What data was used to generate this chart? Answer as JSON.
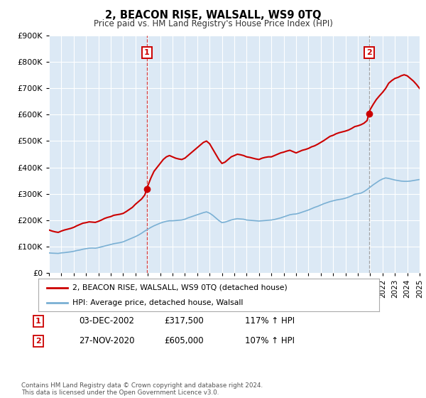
{
  "title": "2, BEACON RISE, WALSALL, WS9 0TQ",
  "subtitle": "Price paid vs. HM Land Registry's House Price Index (HPI)",
  "fig_bg_color": "#ffffff",
  "plot_bg_color": "#dce9f5",
  "red_line_color": "#cc0000",
  "blue_line_color": "#7ab0d4",
  "red_dot_color": "#cc0000",
  "grid_color": "#ffffff",
  "vline1_color": "#cc0000",
  "vline2_color": "#888888",
  "legend_label_red": "2, BEACON RISE, WALSALL, WS9 0TQ (detached house)",
  "legend_label_blue": "HPI: Average price, detached house, Walsall",
  "sale1_date": "03-DEC-2002",
  "sale1_price": 317500,
  "sale1_hpi": "117%",
  "sale1_year": 2002.92,
  "sale2_date": "27-NOV-2020",
  "sale2_price": 605000,
  "sale2_hpi": "107%",
  "sale2_year": 2020.9,
  "xmin": 1995,
  "xmax": 2025,
  "ymin": 0,
  "ymax": 900000,
  "yticks": [
    0,
    100000,
    200000,
    300000,
    400000,
    500000,
    600000,
    700000,
    800000,
    900000
  ],
  "ytick_labels": [
    "£0",
    "£100K",
    "£200K",
    "£300K",
    "£400K",
    "£500K",
    "£600K",
    "£700K",
    "£800K",
    "£900K"
  ],
  "footer": "Contains HM Land Registry data © Crown copyright and database right 2024.\nThis data is licensed under the Open Government Licence v3.0.",
  "red_hpi_data": [
    [
      1995.0,
      162000
    ],
    [
      1995.25,
      158000
    ],
    [
      1995.5,
      155000
    ],
    [
      1995.75,
      153000
    ],
    [
      1996.0,
      158000
    ],
    [
      1996.25,
      162000
    ],
    [
      1996.5,
      165000
    ],
    [
      1996.75,
      168000
    ],
    [
      1997.0,
      172000
    ],
    [
      1997.25,
      178000
    ],
    [
      1997.5,
      183000
    ],
    [
      1997.75,
      188000
    ],
    [
      1998.0,
      190000
    ],
    [
      1998.25,
      193000
    ],
    [
      1998.5,
      192000
    ],
    [
      1998.75,
      191000
    ],
    [
      1999.0,
      195000
    ],
    [
      1999.25,
      200000
    ],
    [
      1999.5,
      206000
    ],
    [
      1999.75,
      210000
    ],
    [
      2000.0,
      213000
    ],
    [
      2000.25,
      218000
    ],
    [
      2000.5,
      220000
    ],
    [
      2000.75,
      222000
    ],
    [
      2001.0,
      225000
    ],
    [
      2001.25,
      232000
    ],
    [
      2001.5,
      240000
    ],
    [
      2001.75,
      248000
    ],
    [
      2002.0,
      260000
    ],
    [
      2002.25,
      270000
    ],
    [
      2002.5,
      280000
    ],
    [
      2002.75,
      295000
    ],
    [
      2002.92,
      317500
    ],
    [
      2003.0,
      330000
    ],
    [
      2003.25,
      360000
    ],
    [
      2003.5,
      385000
    ],
    [
      2003.75,
      400000
    ],
    [
      2004.0,
      415000
    ],
    [
      2004.25,
      430000
    ],
    [
      2004.5,
      440000
    ],
    [
      2004.75,
      445000
    ],
    [
      2005.0,
      440000
    ],
    [
      2005.25,
      435000
    ],
    [
      2005.5,
      432000
    ],
    [
      2005.75,
      430000
    ],
    [
      2006.0,
      435000
    ],
    [
      2006.25,
      445000
    ],
    [
      2006.5,
      455000
    ],
    [
      2006.75,
      465000
    ],
    [
      2007.0,
      475000
    ],
    [
      2007.25,
      485000
    ],
    [
      2007.5,
      495000
    ],
    [
      2007.75,
      500000
    ],
    [
      2008.0,
      490000
    ],
    [
      2008.25,
      470000
    ],
    [
      2008.5,
      450000
    ],
    [
      2008.75,
      430000
    ],
    [
      2009.0,
      415000
    ],
    [
      2009.25,
      420000
    ],
    [
      2009.5,
      430000
    ],
    [
      2009.75,
      440000
    ],
    [
      2010.0,
      445000
    ],
    [
      2010.25,
      450000
    ],
    [
      2010.5,
      448000
    ],
    [
      2010.75,
      445000
    ],
    [
      2011.0,
      440000
    ],
    [
      2011.25,
      438000
    ],
    [
      2011.5,
      435000
    ],
    [
      2011.75,
      432000
    ],
    [
      2012.0,
      430000
    ],
    [
      2012.25,
      435000
    ],
    [
      2012.5,
      438000
    ],
    [
      2012.75,
      440000
    ],
    [
      2013.0,
      440000
    ],
    [
      2013.25,
      445000
    ],
    [
      2013.5,
      450000
    ],
    [
      2013.75,
      455000
    ],
    [
      2014.0,
      458000
    ],
    [
      2014.25,
      462000
    ],
    [
      2014.5,
      465000
    ],
    [
      2014.75,
      460000
    ],
    [
      2015.0,
      455000
    ],
    [
      2015.25,
      460000
    ],
    [
      2015.5,
      465000
    ],
    [
      2015.75,
      468000
    ],
    [
      2016.0,
      472000
    ],
    [
      2016.25,
      478000
    ],
    [
      2016.5,
      482000
    ],
    [
      2016.75,
      488000
    ],
    [
      2017.0,
      495000
    ],
    [
      2017.25,
      502000
    ],
    [
      2017.5,
      510000
    ],
    [
      2017.75,
      518000
    ],
    [
      2018.0,
      522000
    ],
    [
      2018.25,
      528000
    ],
    [
      2018.5,
      532000
    ],
    [
      2018.75,
      535000
    ],
    [
      2019.0,
      538000
    ],
    [
      2019.25,
      542000
    ],
    [
      2019.5,
      548000
    ],
    [
      2019.75,
      555000
    ],
    [
      2020.0,
      558000
    ],
    [
      2020.25,
      562000
    ],
    [
      2020.5,
      568000
    ],
    [
      2020.75,
      578000
    ],
    [
      2020.9,
      605000
    ],
    [
      2021.0,
      620000
    ],
    [
      2021.25,
      640000
    ],
    [
      2021.5,
      658000
    ],
    [
      2021.75,
      672000
    ],
    [
      2022.0,
      685000
    ],
    [
      2022.25,
      700000
    ],
    [
      2022.5,
      720000
    ],
    [
      2022.75,
      730000
    ],
    [
      2023.0,
      738000
    ],
    [
      2023.25,
      742000
    ],
    [
      2023.5,
      748000
    ],
    [
      2023.75,
      752000
    ],
    [
      2024.0,
      748000
    ],
    [
      2024.25,
      738000
    ],
    [
      2024.5,
      728000
    ],
    [
      2024.75,
      715000
    ],
    [
      2025.0,
      700000
    ]
  ],
  "blue_hpi_data": [
    [
      1995.0,
      75000
    ],
    [
      1995.25,
      74000
    ],
    [
      1995.5,
      73500
    ],
    [
      1995.75,
      73000
    ],
    [
      1996.0,
      75000
    ],
    [
      1996.25,
      76000
    ],
    [
      1996.5,
      77500
    ],
    [
      1996.75,
      79000
    ],
    [
      1997.0,
      81000
    ],
    [
      1997.25,
      84000
    ],
    [
      1997.5,
      86000
    ],
    [
      1997.75,
      89000
    ],
    [
      1998.0,
      91000
    ],
    [
      1998.25,
      93000
    ],
    [
      1998.5,
      93500
    ],
    [
      1998.75,
      93000
    ],
    [
      1999.0,
      95000
    ],
    [
      1999.25,
      98000
    ],
    [
      1999.5,
      101000
    ],
    [
      1999.75,
      104000
    ],
    [
      2000.0,
      107000
    ],
    [
      2000.25,
      110000
    ],
    [
      2000.5,
      112000
    ],
    [
      2000.75,
      114000
    ],
    [
      2001.0,
      117000
    ],
    [
      2001.25,
      122000
    ],
    [
      2001.5,
      127000
    ],
    [
      2001.75,
      132000
    ],
    [
      2002.0,
      137000
    ],
    [
      2002.25,
      143000
    ],
    [
      2002.5,
      150000
    ],
    [
      2002.75,
      158000
    ],
    [
      2003.0,
      165000
    ],
    [
      2003.25,
      172000
    ],
    [
      2003.5,
      178000
    ],
    [
      2003.75,
      183000
    ],
    [
      2004.0,
      188000
    ],
    [
      2004.25,
      192000
    ],
    [
      2004.5,
      195000
    ],
    [
      2004.75,
      197000
    ],
    [
      2005.0,
      197000
    ],
    [
      2005.25,
      198000
    ],
    [
      2005.5,
      199000
    ],
    [
      2005.75,
      200000
    ],
    [
      2006.0,
      203000
    ],
    [
      2006.25,
      208000
    ],
    [
      2006.5,
      212000
    ],
    [
      2006.75,
      216000
    ],
    [
      2007.0,
      220000
    ],
    [
      2007.25,
      224000
    ],
    [
      2007.5,
      228000
    ],
    [
      2007.75,
      231000
    ],
    [
      2008.0,
      226000
    ],
    [
      2008.25,
      218000
    ],
    [
      2008.5,
      208000
    ],
    [
      2008.75,
      198000
    ],
    [
      2009.0,
      190000
    ],
    [
      2009.25,
      192000
    ],
    [
      2009.5,
      196000
    ],
    [
      2009.75,
      200000
    ],
    [
      2010.0,
      203000
    ],
    [
      2010.25,
      205000
    ],
    [
      2010.5,
      204000
    ],
    [
      2010.75,
      203000
    ],
    [
      2011.0,
      200000
    ],
    [
      2011.25,
      199000
    ],
    [
      2011.5,
      198000
    ],
    [
      2011.75,
      197000
    ],
    [
      2012.0,
      196000
    ],
    [
      2012.25,
      197000
    ],
    [
      2012.5,
      198000
    ],
    [
      2012.75,
      199000
    ],
    [
      2013.0,
      200000
    ],
    [
      2013.25,
      202000
    ],
    [
      2013.5,
      205000
    ],
    [
      2013.75,
      208000
    ],
    [
      2014.0,
      212000
    ],
    [
      2014.25,
      216000
    ],
    [
      2014.5,
      220000
    ],
    [
      2014.75,
      222000
    ],
    [
      2015.0,
      223000
    ],
    [
      2015.25,
      226000
    ],
    [
      2015.5,
      230000
    ],
    [
      2015.75,
      234000
    ],
    [
      2016.0,
      238000
    ],
    [
      2016.25,
      243000
    ],
    [
      2016.5,
      248000
    ],
    [
      2016.75,
      252000
    ],
    [
      2017.0,
      257000
    ],
    [
      2017.25,
      262000
    ],
    [
      2017.5,
      266000
    ],
    [
      2017.75,
      270000
    ],
    [
      2018.0,
      273000
    ],
    [
      2018.25,
      276000
    ],
    [
      2018.5,
      278000
    ],
    [
      2018.75,
      280000
    ],
    [
      2019.0,
      283000
    ],
    [
      2019.25,
      287000
    ],
    [
      2019.5,
      292000
    ],
    [
      2019.75,
      298000
    ],
    [
      2020.0,
      300000
    ],
    [
      2020.25,
      302000
    ],
    [
      2020.5,
      308000
    ],
    [
      2020.75,
      316000
    ],
    [
      2021.0,
      325000
    ],
    [
      2021.25,
      334000
    ],
    [
      2021.5,
      342000
    ],
    [
      2021.75,
      350000
    ],
    [
      2022.0,
      356000
    ],
    [
      2022.25,
      360000
    ],
    [
      2022.5,
      358000
    ],
    [
      2022.75,
      355000
    ],
    [
      2023.0,
      352000
    ],
    [
      2023.25,
      350000
    ],
    [
      2023.5,
      348000
    ],
    [
      2023.75,
      347000
    ],
    [
      2024.0,
      347000
    ],
    [
      2024.25,
      348000
    ],
    [
      2024.5,
      350000
    ],
    [
      2024.75,
      352000
    ],
    [
      2025.0,
      354000
    ]
  ]
}
